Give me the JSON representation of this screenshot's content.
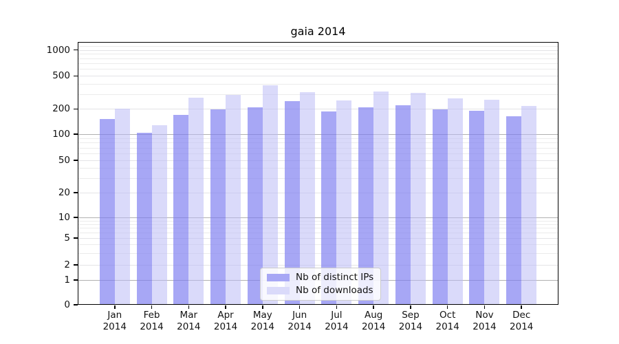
{
  "chart_data": {
    "type": "bar",
    "title": "gaia 2014",
    "categories": [
      "Jan 2014",
      "Feb 2014",
      "Mar 2014",
      "Apr 2014",
      "May 2014",
      "Jun 2014",
      "Jul 2014",
      "Aug 2014",
      "Sep 2014",
      "Oct 2014",
      "Nov 2014",
      "Dec 2014"
    ],
    "series": [
      {
        "name": "Nb of distinct IPs",
        "color": "#a7a7f5",
        "color_rgba": "rgba(124,124,240,0.67)",
        "values": [
          151,
          104,
          171,
          196,
          207,
          246,
          186,
          210,
          221,
          199,
          189,
          162
        ]
      },
      {
        "name": "Nb of downloads",
        "color": "#dadafa",
        "color_rgba": "rgba(187,187,246,0.55)",
        "values": [
          203,
          127,
          273,
          296,
          386,
          316,
          251,
          326,
          311,
          266,
          256,
          216
        ]
      }
    ],
    "xlabel": "",
    "ylabel": "",
    "y_axis": {
      "scale": "log-with-zero-baseline",
      "tick_labels": [
        "0",
        "1",
        "2",
        "5",
        "10",
        "20",
        "50",
        "100",
        "200",
        "500",
        "1000"
      ],
      "range": [
        0,
        1250
      ],
      "grid": "both"
    },
    "legend_position": "bottom-center",
    "grid_major_color": "#b0b0b0",
    "grid_minor_color": "#ebebeb",
    "grid_labeled_color": "#e3e3e6"
  }
}
